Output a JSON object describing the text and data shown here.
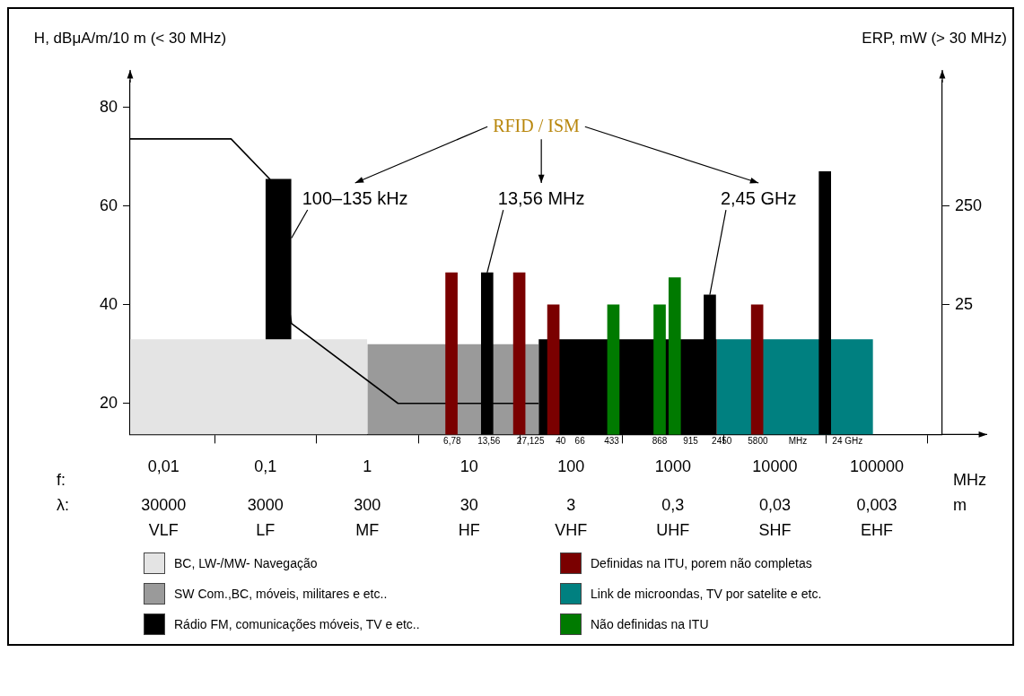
{
  "chart_data": {
    "type": "bar",
    "title": "RFID / ISM",
    "ylabel": "H, dBμA/m/10 m (< 30 MHz)",
    "y2label": "ERP, mW (> 30 MHz)",
    "xlabel": "MHz",
    "log": "x",
    "grid": false,
    "legend": "bottom",
    "xlim": [
      0.0047,
      440000
    ],
    "xticks": [
      {
        "value": 0.01,
        "label": "0,01"
      },
      {
        "value": 0.1,
        "label": "0,1"
      },
      1,
      10,
      100,
      1000,
      10000,
      100000
    ],
    "ylim": [
      13.7,
      85.4
    ],
    "yticks": [
      20,
      40,
      60,
      80
    ],
    "y2lim": [
      -271,
      536
    ],
    "y2ticks": [
      25,
      250
    ],
    "series": [
      {
        "name": "BC, LW-/MW- Navegação",
        "type": "area",
        "color": "#e4e4e4",
        "x": [
          0.0047,
          1
        ],
        "values": [
          33,
          33
        ]
      },
      {
        "name": "SW Com.,BC, móveis, militares e etc..",
        "type": "area",
        "color": "#9a9a9a",
        "x": [
          1,
          48
        ],
        "values": [
          32,
          32
        ]
      },
      {
        "name": "Rádio FM, comunicações móveis, TV e etc..",
        "type": "area",
        "color": "#000000",
        "x": [
          48,
          2700
        ],
        "values": [
          33,
          33
        ]
      },
      {
        "name": "Definidas na ITU, porem não completas",
        "color": "#7a0000",
        "x": [
          6.7,
          31,
          67,
          6700
        ],
        "values": [
          46.5,
          46.5,
          40,
          40
        ]
      },
      {
        "name": "Link de microondas, TV por satelite e etc.",
        "type": "area",
        "color": "#008080",
        "x": [
          2700,
          92000
        ],
        "values": [
          33,
          33
        ]
      },
      {
        "name": "Não definidas na ITU",
        "color": "#007a00",
        "x": [
          260,
          740,
          1040
        ],
        "values": [
          40,
          40,
          45.5
        ]
      },
      {
        "type": "area",
        "color": "#000000",
        "x": [
          0.1,
          0.18
        ],
        "values": [
          65.5,
          65.5
        ]
      },
      {
        "color": "#000000",
        "x": [
          15,
          2300,
          31000
        ],
        "values": [
          46.5,
          42,
          67
        ]
      },
      {
        "type": "line",
        "color": "#000000",
        "x": [
          0.0047,
          0.046,
          0.11,
          0.18,
          2,
          48
        ],
        "values": [
          73.6,
          73.6,
          65.5,
          36.2,
          20,
          20
        ]
      }
    ],
    "annotations": [
      "f:",
      "λ:",
      "30000",
      "3000",
      "300",
      "30",
      "3",
      "0,3",
      "0,03",
      "0,003",
      "m",
      "VLF",
      "LF",
      "MF",
      "HF",
      "VHF",
      "UHF",
      "SHF",
      "EHF",
      {
        "text": "100–135 kHz",
        "x": 0.18,
        "y": 53.5
      },
      {
        "text": "13,56 MHz",
        "x": 15,
        "y": 46.5
      },
      {
        "text": "2,45 GHz",
        "x": 2300,
        "y": 42
      },
      {
        "text": "6,78",
        "x": 6.8,
        "y": 13.7
      },
      {
        "text": "13,56",
        "x": 15.6,
        "y": 13.7
      },
      {
        "text": "27,125",
        "x": 40,
        "y": 13.7
      },
      {
        "text": "40",
        "x": 79,
        "y": 13.7
      },
      {
        "text": "66",
        "x": 122,
        "y": 13.7
      },
      {
        "text": "433",
        "x": 250,
        "y": 13.7
      },
      {
        "text": "868",
        "x": 740,
        "y": 13.7
      },
      {
        "text": "915",
        "x": 1490,
        "y": 13.7
      },
      {
        "text": "2450",
        "x": 3010,
        "y": 13.7
      },
      {
        "text": "5800",
        "x": 6800,
        "y": 13.7
      },
      {
        "text": "MHz",
        "x": 16800,
        "y": 13.7
      },
      {
        "text": "24 GHz",
        "x": 51600,
        "y": 13.7
      }
    ]
  }
}
